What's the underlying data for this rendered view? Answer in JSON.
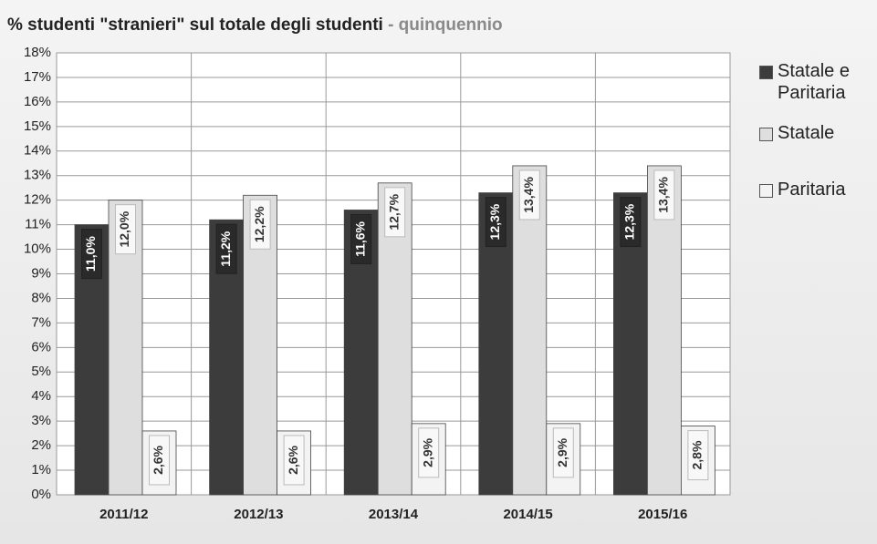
{
  "chart_data": {
    "type": "bar",
    "title": "% studenti \"stranieri\" sul totale degli studenti",
    "subtitle": "- quinquennio",
    "categories": [
      "2011/12",
      "2012/13",
      "2013/14",
      "2014/15",
      "2015/16"
    ],
    "series": [
      {
        "name": "Statale e Paritaria",
        "color": "#3c3c3c",
        "values": [
          11.0,
          11.2,
          11.6,
          12.3,
          12.3
        ],
        "value_labels": [
          "11,0%",
          "11,2%",
          "11,6%",
          "12,3%",
          "12,3%"
        ]
      },
      {
        "name": "Statale",
        "color": "#dedede",
        "values": [
          12.0,
          12.2,
          12.7,
          13.4,
          13.4
        ],
        "value_labels": [
          "12,0%",
          "12,2%",
          "12,7%",
          "13,4%",
          "13,4%"
        ]
      },
      {
        "name": "Paritaria",
        "color": "#f3f3f3",
        "values": [
          2.6,
          2.6,
          2.9,
          2.9,
          2.8
        ],
        "value_labels": [
          "2,6%",
          "2,6%",
          "2,9%",
          "2,9%",
          "2,8%"
        ]
      }
    ],
    "ylim": [
      0,
      18
    ],
    "yticks": [
      {
        "value": 0,
        "label": "0%"
      },
      {
        "value": 1,
        "label": "1%"
      },
      {
        "value": 2,
        "label": "2%"
      },
      {
        "value": 3,
        "label": "3%"
      },
      {
        "value": 4,
        "label": "4%"
      },
      {
        "value": 5,
        "label": "5%"
      },
      {
        "value": 6,
        "label": "6%"
      },
      {
        "value": 7,
        "label": "7%"
      },
      {
        "value": 8,
        "label": "8%"
      },
      {
        "value": 9,
        "label": "9%"
      },
      {
        "value": 10,
        "label": "10%"
      },
      {
        "value": 11,
        "label": "11%"
      },
      {
        "value": 12,
        "label": "12%"
      },
      {
        "value": 13,
        "label": "13%"
      },
      {
        "value": 14,
        "label": "14%"
      },
      {
        "value": 15,
        "label": "15%"
      },
      {
        "value": 16,
        "label": "16%"
      },
      {
        "value": 17,
        "label": "17%"
      },
      {
        "value": 18,
        "label": "18%"
      }
    ],
    "grid": true,
    "legend": "right"
  }
}
